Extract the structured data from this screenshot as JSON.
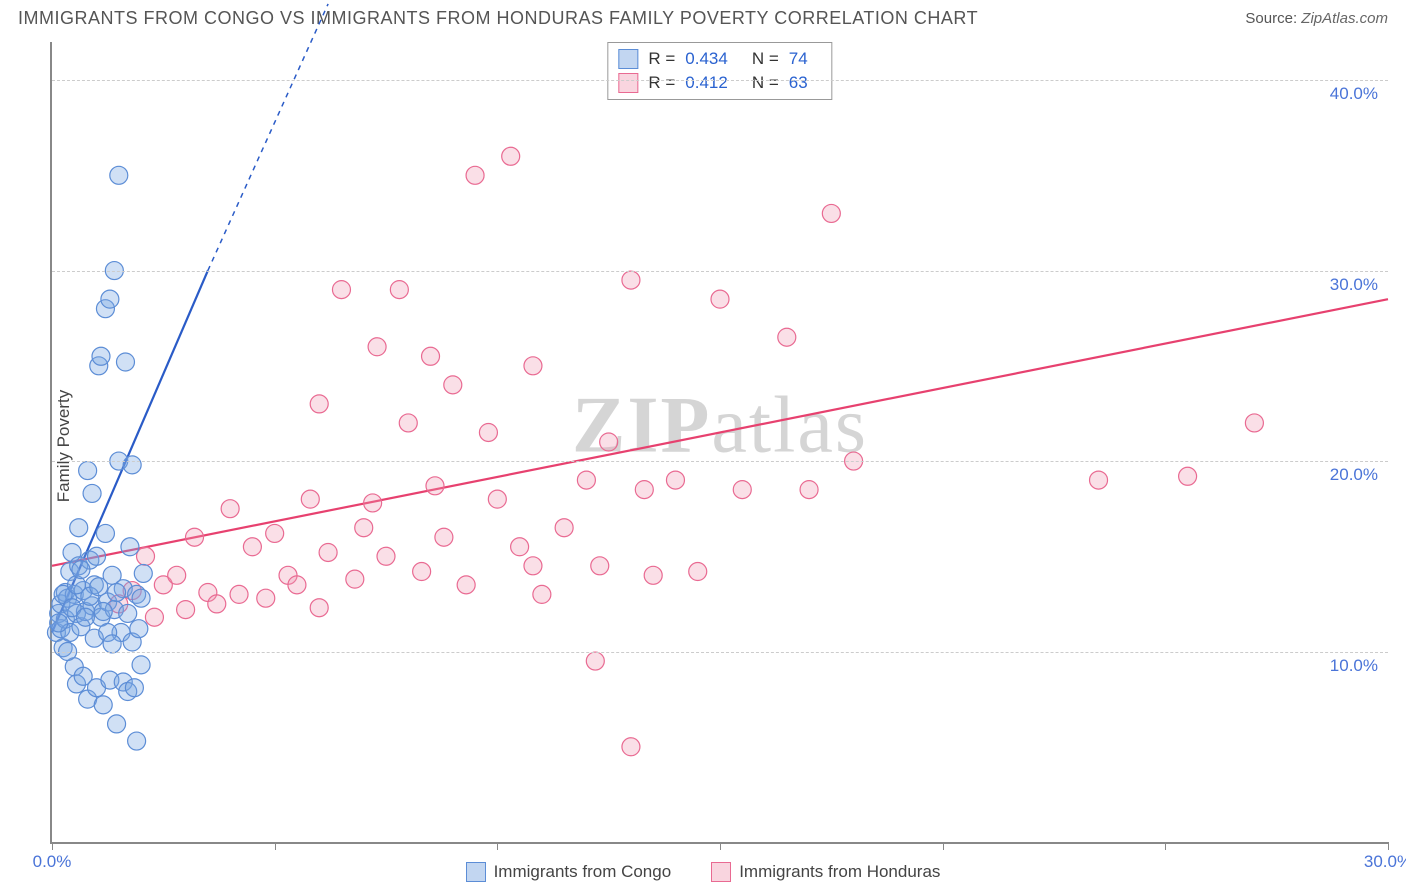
{
  "header": {
    "title": "IMMIGRANTS FROM CONGO VS IMMIGRANTS FROM HONDURAS FAMILY POVERTY CORRELATION CHART",
    "source_label": "Source:",
    "source_value": "ZipAtlas.com"
  },
  "chart": {
    "type": "scatter",
    "ylabel": "Family Poverty",
    "xlim": [
      0,
      30
    ],
    "ylim": [
      0,
      42
    ],
    "xticks": [
      0,
      5,
      10,
      15,
      20,
      25,
      30
    ],
    "xtick_labels": {
      "0": "0.0%",
      "30": "30.0%"
    },
    "yticks": [
      10,
      20,
      30,
      40
    ],
    "ytick_labels": {
      "10": "10.0%",
      "20": "20.0%",
      "30": "30.0%",
      "40": "40.0%"
    },
    "grid_color": "#cccccc",
    "axis_color": "#888888",
    "background_color": "#ffffff",
    "watermark": "ZIPatlas",
    "series": {
      "congo": {
        "label": "Immigrants from Congo",
        "color_fill": "rgba(120,165,225,0.35)",
        "color_stroke": "#5c8dd6",
        "marker_radius": 9,
        "R": "0.434",
        "N": "74",
        "trend": {
          "x1": 0,
          "y1": 11,
          "x2": 3.5,
          "y2": 30,
          "dash_x2": 6.2,
          "dash_y2": 44,
          "stroke": "#2a5bc7",
          "width": 2.2
        },
        "points": [
          [
            0.1,
            11
          ],
          [
            0.15,
            12
          ],
          [
            0.2,
            11.2
          ],
          [
            0.2,
            12.5
          ],
          [
            0.25,
            10.2
          ],
          [
            0.3,
            13.1
          ],
          [
            0.3,
            11.7
          ],
          [
            0.35,
            12.8
          ],
          [
            0.4,
            14.2
          ],
          [
            0.4,
            11
          ],
          [
            0.45,
            15.2
          ],
          [
            0.5,
            13
          ],
          [
            0.5,
            9.2
          ],
          [
            0.55,
            12
          ],
          [
            0.55,
            8.3
          ],
          [
            0.6,
            14.5
          ],
          [
            0.6,
            16.5
          ],
          [
            0.65,
            11.3
          ],
          [
            0.7,
            13.2
          ],
          [
            0.7,
            8.7
          ],
          [
            0.75,
            12.1
          ],
          [
            0.8,
            19.5
          ],
          [
            0.8,
            7.5
          ],
          [
            0.85,
            14.8
          ],
          [
            0.9,
            12.4
          ],
          [
            0.9,
            18.3
          ],
          [
            0.95,
            13.5
          ],
          [
            1.0,
            8.1
          ],
          [
            1.0,
            15
          ],
          [
            1.05,
            25
          ],
          [
            1.1,
            11.8
          ],
          [
            1.1,
            25.5
          ],
          [
            1.15,
            7.2
          ],
          [
            1.2,
            16.2
          ],
          [
            1.2,
            28
          ],
          [
            1.25,
            12.6
          ],
          [
            1.3,
            8.5
          ],
          [
            1.3,
            28.5
          ],
          [
            1.35,
            14
          ],
          [
            1.4,
            12.2
          ],
          [
            1.4,
            30
          ],
          [
            1.45,
            6.2
          ],
          [
            1.5,
            20
          ],
          [
            1.5,
            35
          ],
          [
            1.55,
            11
          ],
          [
            1.6,
            8.4
          ],
          [
            1.6,
            13.3
          ],
          [
            1.65,
            25.2
          ],
          [
            1.7,
            12
          ],
          [
            1.7,
            7.9
          ],
          [
            1.75,
            15.5
          ],
          [
            1.8,
            10.5
          ],
          [
            1.8,
            19.8
          ],
          [
            1.85,
            8.1
          ],
          [
            1.9,
            13
          ],
          [
            1.9,
            5.3
          ],
          [
            1.95,
            11.2
          ],
          [
            2.0,
            12.8
          ],
          [
            2.0,
            9.3
          ],
          [
            2.05,
            14.1
          ],
          [
            0.15,
            11.5
          ],
          [
            0.25,
            13
          ],
          [
            0.35,
            10
          ],
          [
            0.45,
            12.3
          ],
          [
            0.55,
            13.5
          ],
          [
            0.65,
            14.3
          ],
          [
            0.75,
            11.8
          ],
          [
            0.85,
            12.9
          ],
          [
            0.95,
            10.7
          ],
          [
            1.05,
            13.4
          ],
          [
            1.15,
            12.1
          ],
          [
            1.25,
            11
          ],
          [
            1.35,
            10.4
          ],
          [
            1.45,
            13.1
          ]
        ]
      },
      "honduras": {
        "label": "Immigrants from Honduras",
        "color_fill": "rgba(240,150,175,0.30)",
        "color_stroke": "#e96a92",
        "marker_radius": 9,
        "R": "0.412",
        "N": "63",
        "trend": {
          "x1": 0,
          "y1": 14.5,
          "x2": 30,
          "y2": 28.5,
          "stroke": "#e7416f",
          "width": 2.2
        },
        "points": [
          [
            1.5,
            12.5
          ],
          [
            1.8,
            13.2
          ],
          [
            2.1,
            15
          ],
          [
            2.3,
            11.8
          ],
          [
            2.5,
            13.5
          ],
          [
            2.8,
            14
          ],
          [
            3.0,
            12.2
          ],
          [
            3.2,
            16
          ],
          [
            3.5,
            13.1
          ],
          [
            3.7,
            12.5
          ],
          [
            4.0,
            17.5
          ],
          [
            4.2,
            13
          ],
          [
            4.5,
            15.5
          ],
          [
            4.8,
            12.8
          ],
          [
            5.0,
            16.2
          ],
          [
            5.3,
            14
          ],
          [
            5.5,
            13.5
          ],
          [
            5.8,
            18
          ],
          [
            6.0,
            23
          ],
          [
            6.2,
            15.2
          ],
          [
            6.5,
            29
          ],
          [
            6.8,
            13.8
          ],
          [
            7.0,
            16.5
          ],
          [
            7.3,
            26
          ],
          [
            7.5,
            15
          ],
          [
            7.8,
            29
          ],
          [
            8.0,
            22
          ],
          [
            8.3,
            14.2
          ],
          [
            8.5,
            25.5
          ],
          [
            8.8,
            16
          ],
          [
            9.0,
            24
          ],
          [
            9.3,
            13.5
          ],
          [
            9.5,
            35
          ],
          [
            9.8,
            21.5
          ],
          [
            10.0,
            18
          ],
          [
            10.3,
            36
          ],
          [
            10.5,
            15.5
          ],
          [
            10.8,
            25
          ],
          [
            11.0,
            13
          ],
          [
            12.0,
            19
          ],
          [
            12.2,
            9.5
          ],
          [
            12.3,
            14.5
          ],
          [
            12.5,
            21
          ],
          [
            13.0,
            5
          ],
          [
            13.0,
            29.5
          ],
          [
            13.3,
            18.5
          ],
          [
            13.5,
            14
          ],
          [
            14.0,
            19
          ],
          [
            14.5,
            14.2
          ],
          [
            15.0,
            28.5
          ],
          [
            15.5,
            18.5
          ],
          [
            16.5,
            26.5
          ],
          [
            17.0,
            18.5
          ],
          [
            17.5,
            33
          ],
          [
            18.0,
            20
          ],
          [
            23.5,
            19
          ],
          [
            25.5,
            19.2
          ],
          [
            27.0,
            22
          ],
          [
            10.8,
            14.5
          ],
          [
            11.5,
            16.5
          ],
          [
            6.0,
            12.3
          ],
          [
            7.2,
            17.8
          ],
          [
            8.6,
            18.7
          ]
        ]
      }
    },
    "legend_top": {
      "R_label": "R =",
      "N_label": "N ="
    }
  }
}
